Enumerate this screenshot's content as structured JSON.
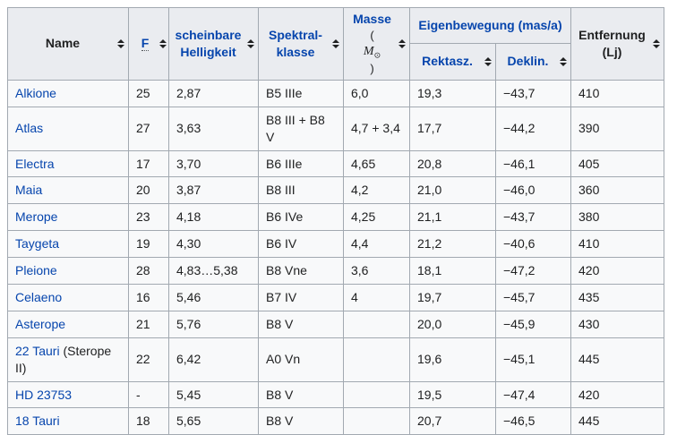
{
  "colors": {
    "link_blue": "#0645ad",
    "text": "#202122",
    "header_bg": "#eaecf0",
    "row_bg": "#f8f9fa",
    "border": "#a2a9b1"
  },
  "table": {
    "header": {
      "name": "Name",
      "f": "F",
      "magnitude": [
        "scheinbare",
        "Helligkeit"
      ],
      "spectral": [
        "Spektral-",
        "klasse"
      ],
      "mass_label": "Masse",
      "mass_unit": {
        "open": "(",
        "symbol": "M",
        "sun": "⊙",
        "close": ")"
      },
      "proper_motion": "Eigenbewegung (mas/a)",
      "ra": "Rektasz.",
      "dec": "Deklin.",
      "distance": [
        "Entfernung",
        "(Lj)"
      ]
    },
    "rows": [
      {
        "link": "Alkione",
        "suffix": "",
        "f": "25",
        "mag": "2,87",
        "sp": "B5 IIIe",
        "mass": "6,0",
        "ra": "19,3",
        "dec": "−43,7",
        "dist": "410"
      },
      {
        "link": "Atlas",
        "suffix": "",
        "f": "27",
        "mag": "3,63",
        "sp": "B8 III + B8 V",
        "mass": "4,7 + 3,4",
        "ra": "17,7",
        "dec": "−44,2",
        "dist": "390"
      },
      {
        "link": "Electra",
        "suffix": "",
        "f": "17",
        "mag": "3,70",
        "sp": "B6 IIIe",
        "mass": "4,65",
        "ra": "20,8",
        "dec": "−46,1",
        "dist": "405"
      },
      {
        "link": "Maia",
        "suffix": "",
        "f": "20",
        "mag": "3,87",
        "sp": "B8 III",
        "mass": "4,2",
        "ra": "21,0",
        "dec": "−46,0",
        "dist": "360"
      },
      {
        "link": "Merope",
        "suffix": "",
        "f": "23",
        "mag": "4,18",
        "sp": "B6 IVe",
        "mass": "4,25",
        "ra": "21,1",
        "dec": "−43,7",
        "dist": "380"
      },
      {
        "link": "Taygeta",
        "suffix": "",
        "f": "19",
        "mag": "4,30",
        "sp": "B6 IV",
        "mass": "4,4",
        "ra": "21,2",
        "dec": "−40,6",
        "dist": "410"
      },
      {
        "link": "Pleione",
        "suffix": "",
        "f": "28",
        "mag": "4,83…5,38",
        "sp": "B8 Vne",
        "mass": "3,6",
        "ra": "18,1",
        "dec": "−47,2",
        "dist": "420"
      },
      {
        "link": "Celaeno",
        "suffix": "",
        "f": "16",
        "mag": "5,46",
        "sp": "B7 IV",
        "mass": "4",
        "ra": "19,7",
        "dec": "−45,7",
        "dist": "435"
      },
      {
        "link": "Asterope",
        "suffix": "",
        "f": "21",
        "mag": "5,76",
        "sp": "B8 V",
        "mass": "",
        "ra": "20,0",
        "dec": "−45,9",
        "dist": "430"
      },
      {
        "link": "22 Tauri",
        "suffix": " (Sterope II)",
        "f": "22",
        "mag": "6,42",
        "sp": "A0 Vn",
        "mass": "",
        "ra": "19,6",
        "dec": "−45,1",
        "dist": "445"
      },
      {
        "link": "HD 23753",
        "suffix": "",
        "f": "-",
        "mag": "5,45",
        "sp": "B8 V",
        "mass": "",
        "ra": "19,5",
        "dec": "−47,4",
        "dist": "420"
      },
      {
        "link": "18 Tauri",
        "suffix": "",
        "f": "18",
        "mag": "5,65",
        "sp": "B8 V",
        "mass": "",
        "ra": "20,7",
        "dec": "−46,5",
        "dist": "445"
      }
    ]
  }
}
